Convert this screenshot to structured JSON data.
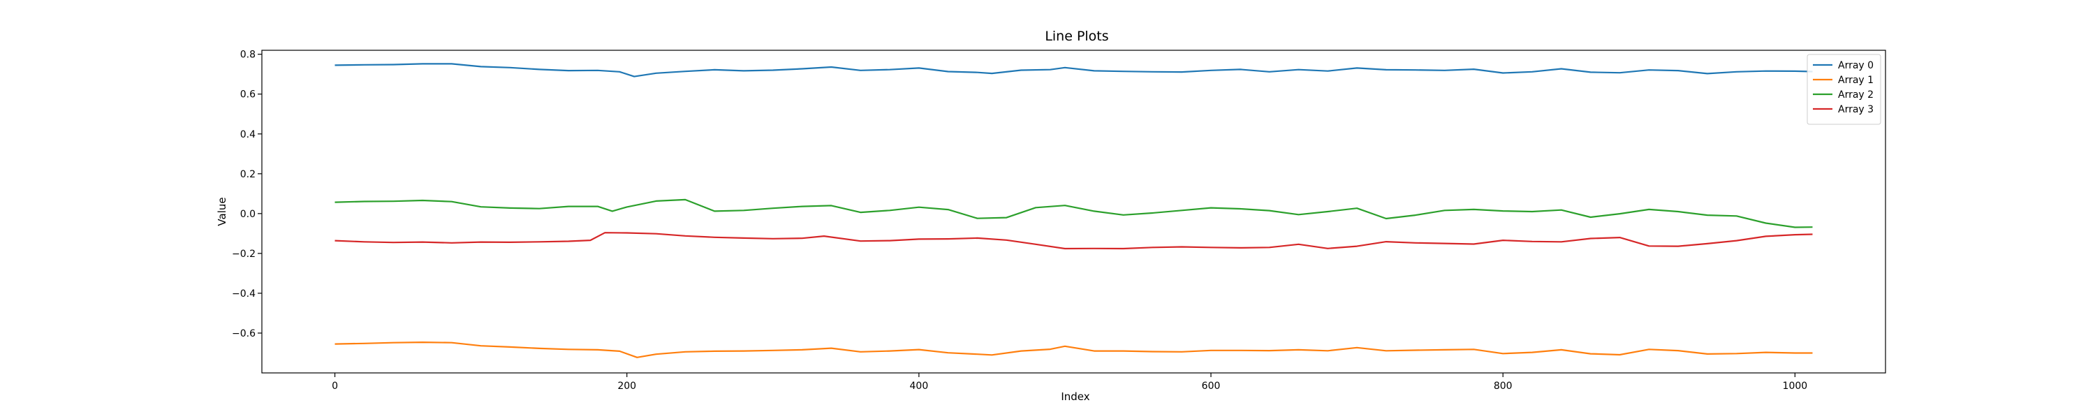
{
  "chart_data": {
    "type": "line",
    "title": "Line Plots",
    "xlabel": "Index",
    "ylabel": "Value",
    "xlim": [
      -50,
      1062
    ],
    "ylim": [
      -0.8,
      0.82
    ],
    "xticks": [
      0,
      200,
      400,
      600,
      800,
      1000
    ],
    "yticks": [
      -0.6,
      -0.4,
      -0.2,
      0.0,
      0.2,
      0.4,
      0.6,
      0.8
    ],
    "ytick_labels": [
      "−0.6",
      "−0.4",
      "−0.2",
      "0.0",
      "0.2",
      "0.4",
      "0.6",
      "0.8"
    ],
    "grid": false,
    "legend_position": "upper right",
    "series": [
      {
        "name": "Array 0",
        "color": "#1f77b4",
        "points": [
          [
            0,
            0.745
          ],
          [
            20,
            0.747
          ],
          [
            40,
            0.748
          ],
          [
            60,
            0.752
          ],
          [
            80,
            0.752
          ],
          [
            100,
            0.738
          ],
          [
            120,
            0.733
          ],
          [
            140,
            0.724
          ],
          [
            160,
            0.718
          ],
          [
            180,
            0.719
          ],
          [
            195,
            0.712
          ],
          [
            205,
            0.688
          ],
          [
            220,
            0.705
          ],
          [
            240,
            0.714
          ],
          [
            260,
            0.722
          ],
          [
            280,
            0.717
          ],
          [
            300,
            0.72
          ],
          [
            320,
            0.727
          ],
          [
            340,
            0.736
          ],
          [
            360,
            0.719
          ],
          [
            380,
            0.723
          ],
          [
            400,
            0.731
          ],
          [
            420,
            0.713
          ],
          [
            440,
            0.709
          ],
          [
            450,
            0.704
          ],
          [
            470,
            0.72
          ],
          [
            490,
            0.723
          ],
          [
            500,
            0.733
          ],
          [
            520,
            0.717
          ],
          [
            540,
            0.714
          ],
          [
            560,
            0.712
          ],
          [
            580,
            0.711
          ],
          [
            600,
            0.719
          ],
          [
            620,
            0.724
          ],
          [
            640,
            0.712
          ],
          [
            660,
            0.723
          ],
          [
            680,
            0.716
          ],
          [
            700,
            0.731
          ],
          [
            720,
            0.722
          ],
          [
            740,
            0.721
          ],
          [
            760,
            0.719
          ],
          [
            780,
            0.725
          ],
          [
            800,
            0.706
          ],
          [
            820,
            0.712
          ],
          [
            840,
            0.727
          ],
          [
            860,
            0.71
          ],
          [
            880,
            0.707
          ],
          [
            900,
            0.721
          ],
          [
            920,
            0.718
          ],
          [
            940,
            0.703
          ],
          [
            960,
            0.712
          ],
          [
            980,
            0.716
          ],
          [
            1000,
            0.715
          ],
          [
            1012,
            0.713
          ]
        ]
      },
      {
        "name": "Array 1",
        "color": "#ff7f0e",
        "points": [
          [
            0,
            -0.655
          ],
          [
            20,
            -0.652
          ],
          [
            40,
            -0.648
          ],
          [
            60,
            -0.646
          ],
          [
            80,
            -0.648
          ],
          [
            100,
            -0.664
          ],
          [
            120,
            -0.67
          ],
          [
            140,
            -0.677
          ],
          [
            160,
            -0.682
          ],
          [
            180,
            -0.684
          ],
          [
            195,
            -0.691
          ],
          [
            207,
            -0.722
          ],
          [
            220,
            -0.706
          ],
          [
            240,
            -0.694
          ],
          [
            260,
            -0.691
          ],
          [
            280,
            -0.69
          ],
          [
            300,
            -0.687
          ],
          [
            320,
            -0.684
          ],
          [
            340,
            -0.676
          ],
          [
            360,
            -0.694
          ],
          [
            380,
            -0.69
          ],
          [
            400,
            -0.683
          ],
          [
            420,
            -0.699
          ],
          [
            440,
            -0.706
          ],
          [
            450,
            -0.71
          ],
          [
            470,
            -0.69
          ],
          [
            490,
            -0.681
          ],
          [
            500,
            -0.666
          ],
          [
            520,
            -0.69
          ],
          [
            540,
            -0.69
          ],
          [
            560,
            -0.693
          ],
          [
            580,
            -0.694
          ],
          [
            600,
            -0.687
          ],
          [
            620,
            -0.687
          ],
          [
            640,
            -0.688
          ],
          [
            660,
            -0.684
          ],
          [
            680,
            -0.689
          ],
          [
            700,
            -0.673
          ],
          [
            720,
            -0.689
          ],
          [
            740,
            -0.686
          ],
          [
            760,
            -0.684
          ],
          [
            780,
            -0.682
          ],
          [
            800,
            -0.703
          ],
          [
            820,
            -0.697
          ],
          [
            840,
            -0.684
          ],
          [
            860,
            -0.704
          ],
          [
            880,
            -0.709
          ],
          [
            900,
            -0.682
          ],
          [
            920,
            -0.688
          ],
          [
            940,
            -0.705
          ],
          [
            960,
            -0.703
          ],
          [
            980,
            -0.697
          ],
          [
            1000,
            -0.7
          ],
          [
            1012,
            -0.7
          ]
        ]
      },
      {
        "name": "Array 2",
        "color": "#2ca02c",
        "points": [
          [
            0,
            0.057
          ],
          [
            20,
            0.061
          ],
          [
            40,
            0.062
          ],
          [
            60,
            0.066
          ],
          [
            80,
            0.06
          ],
          [
            100,
            0.034
          ],
          [
            120,
            0.028
          ],
          [
            140,
            0.025
          ],
          [
            160,
            0.036
          ],
          [
            180,
            0.036
          ],
          [
            190,
            0.012
          ],
          [
            200,
            0.033
          ],
          [
            220,
            0.063
          ],
          [
            240,
            0.07
          ],
          [
            260,
            0.012
          ],
          [
            280,
            0.016
          ],
          [
            300,
            0.027
          ],
          [
            320,
            0.036
          ],
          [
            340,
            0.04
          ],
          [
            360,
            0.006
          ],
          [
            380,
            0.016
          ],
          [
            400,
            0.032
          ],
          [
            420,
            0.02
          ],
          [
            440,
            -0.024
          ],
          [
            460,
            -0.02
          ],
          [
            480,
            0.03
          ],
          [
            500,
            0.041
          ],
          [
            520,
            0.012
          ],
          [
            540,
            -0.007
          ],
          [
            560,
            0.003
          ],
          [
            580,
            0.016
          ],
          [
            600,
            0.029
          ],
          [
            620,
            0.024
          ],
          [
            640,
            0.015
          ],
          [
            660,
            -0.005
          ],
          [
            680,
            0.01
          ],
          [
            700,
            0.027
          ],
          [
            720,
            -0.025
          ],
          [
            740,
            -0.008
          ],
          [
            760,
            0.016
          ],
          [
            780,
            0.021
          ],
          [
            800,
            0.013
          ],
          [
            820,
            0.01
          ],
          [
            840,
            0.018
          ],
          [
            860,
            -0.018
          ],
          [
            880,
            -0.001
          ],
          [
            900,
            0.021
          ],
          [
            920,
            0.01
          ],
          [
            940,
            -0.008
          ],
          [
            960,
            -0.012
          ],
          [
            980,
            -0.048
          ],
          [
            1000,
            -0.069
          ],
          [
            1012,
            -0.068
          ]
        ]
      },
      {
        "name": "Array 3",
        "color": "#d62728",
        "points": [
          [
            0,
            -0.136
          ],
          [
            20,
            -0.142
          ],
          [
            40,
            -0.145
          ],
          [
            60,
            -0.143
          ],
          [
            80,
            -0.147
          ],
          [
            100,
            -0.143
          ],
          [
            120,
            -0.144
          ],
          [
            140,
            -0.142
          ],
          [
            160,
            -0.139
          ],
          [
            175,
            -0.134
          ],
          [
            185,
            -0.096
          ],
          [
            200,
            -0.097
          ],
          [
            220,
            -0.101
          ],
          [
            240,
            -0.112
          ],
          [
            260,
            -0.119
          ],
          [
            280,
            -0.123
          ],
          [
            300,
            -0.126
          ],
          [
            320,
            -0.124
          ],
          [
            335,
            -0.113
          ],
          [
            360,
            -0.138
          ],
          [
            380,
            -0.136
          ],
          [
            400,
            -0.128
          ],
          [
            420,
            -0.127
          ],
          [
            440,
            -0.123
          ],
          [
            460,
            -0.133
          ],
          [
            480,
            -0.154
          ],
          [
            500,
            -0.176
          ],
          [
            520,
            -0.175
          ],
          [
            540,
            -0.176
          ],
          [
            560,
            -0.17
          ],
          [
            580,
            -0.167
          ],
          [
            600,
            -0.17
          ],
          [
            620,
            -0.172
          ],
          [
            640,
            -0.17
          ],
          [
            660,
            -0.154
          ],
          [
            680,
            -0.175
          ],
          [
            700,
            -0.164
          ],
          [
            720,
            -0.141
          ],
          [
            740,
            -0.147
          ],
          [
            760,
            -0.15
          ],
          [
            780,
            -0.153
          ],
          [
            800,
            -0.134
          ],
          [
            820,
            -0.14
          ],
          [
            840,
            -0.142
          ],
          [
            860,
            -0.125
          ],
          [
            880,
            -0.12
          ],
          [
            900,
            -0.163
          ],
          [
            920,
            -0.164
          ],
          [
            940,
            -0.151
          ],
          [
            960,
            -0.136
          ],
          [
            980,
            -0.114
          ],
          [
            1000,
            -0.106
          ],
          [
            1012,
            -0.104
          ]
        ]
      }
    ]
  }
}
